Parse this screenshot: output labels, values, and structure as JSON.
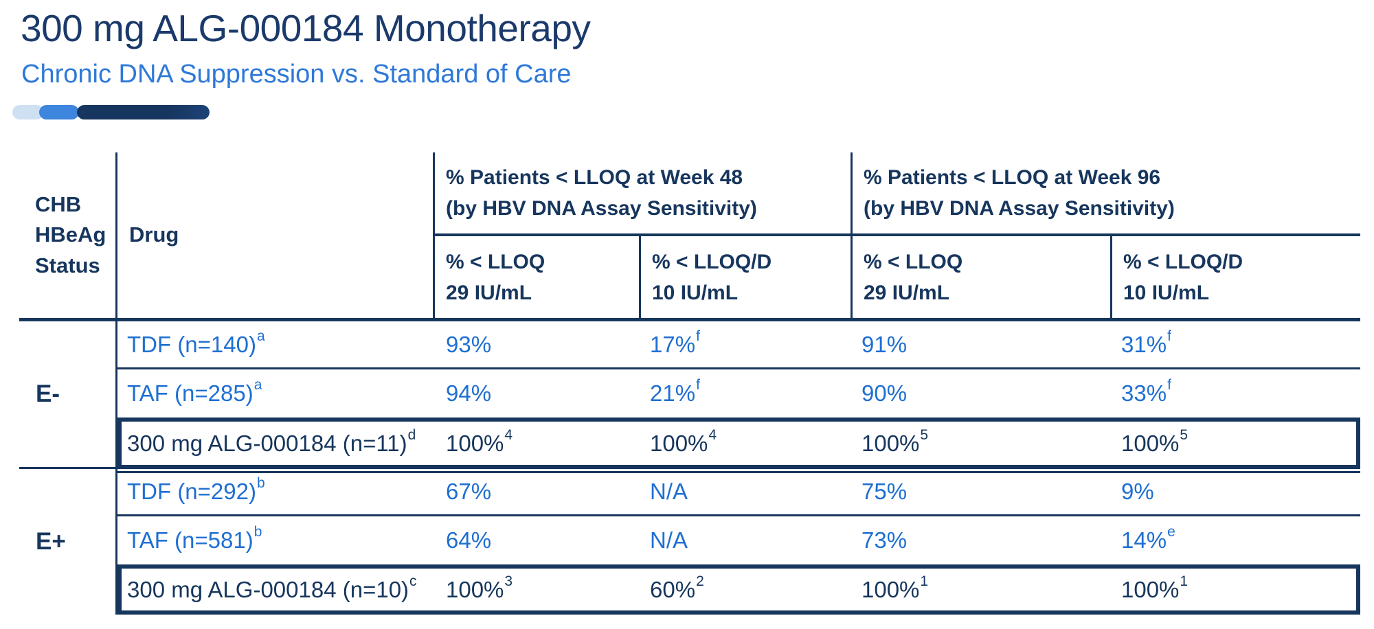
{
  "header": {
    "title": "300 mg ALG-000184 Monotherapy",
    "subtitle": "Chronic DNA Suppression vs. Standard of Care"
  },
  "colors": {
    "navy_text": "#17365d",
    "title_navy": "#1b3a6b",
    "blue_text": "#1e6fd2",
    "subtitle_blue": "#2e79d8",
    "deco_pill_light": "#cfe0f3",
    "deco_pill_mid": "#3d85dd",
    "deco_pill_dark": "#16355f"
  },
  "table": {
    "status_header_lines": [
      "CHB",
      "HBeAg",
      "Status"
    ],
    "drug_header": "Drug",
    "groups": [
      {
        "line1": "% Patients < LLOQ at Week 48",
        "line2": "(by HBV DNA Assay Sensitivity)"
      },
      {
        "line1": "% Patients < LLOQ at Week 96",
        "line2": "(by HBV DNA Assay Sensitivity)"
      }
    ],
    "subcolumns": [
      {
        "line1": "% < LLOQ",
        "line2": "29 IU/mL"
      },
      {
        "line1": "% < LLOQ/D",
        "line2": "10 IU/mL"
      },
      {
        "line1": "% < LLOQ",
        "line2": "29 IU/mL"
      },
      {
        "line1": "% < LLOQ/D",
        "line2": "10 IU/mL"
      }
    ],
    "sections": [
      {
        "label": "E-",
        "rows": [
          {
            "drug": "TDF (n=140)",
            "drug_sup": "a",
            "highlight": false,
            "values": [
              {
                "v": "93%",
                "sup": ""
              },
              {
                "v": "17%",
                "sup": "f"
              },
              {
                "v": "91%",
                "sup": ""
              },
              {
                "v": "31%",
                "sup": "f"
              }
            ]
          },
          {
            "drug": "TAF (n=285)",
            "drug_sup": "a",
            "highlight": false,
            "values": [
              {
                "v": "94%",
                "sup": ""
              },
              {
                "v": "21%",
                "sup": "f"
              },
              {
                "v": "90%",
                "sup": ""
              },
              {
                "v": "33%",
                "sup": "f"
              }
            ]
          },
          {
            "drug": "300 mg ALG-000184 (n=11)",
            "drug_sup": "d",
            "highlight": true,
            "values": [
              {
                "v": "100%",
                "sup": "4"
              },
              {
                "v": "100%",
                "sup": "4"
              },
              {
                "v": "100%",
                "sup": "5"
              },
              {
                "v": "100%",
                "sup": "5"
              }
            ]
          }
        ]
      },
      {
        "label": "E+",
        "rows": [
          {
            "drug": "TDF (n=292)",
            "drug_sup": "b",
            "highlight": false,
            "values": [
              {
                "v": "67%",
                "sup": ""
              },
              {
                "v": "N/A",
                "sup": ""
              },
              {
                "v": "75%",
                "sup": ""
              },
              {
                "v": "9%",
                "sup": ""
              }
            ]
          },
          {
            "drug": "TAF (n=581)",
            "drug_sup": "b",
            "highlight": false,
            "values": [
              {
                "v": "64%",
                "sup": ""
              },
              {
                "v": "N/A",
                "sup": ""
              },
              {
                "v": "73%",
                "sup": ""
              },
              {
                "v": "14%",
                "sup": "e"
              }
            ]
          },
          {
            "drug": "300 mg ALG-000184 (n=10)",
            "drug_sup": "c",
            "highlight": true,
            "values": [
              {
                "v": "100%",
                "sup": "3"
              },
              {
                "v": "60%",
                "sup": "2"
              },
              {
                "v": "100%",
                "sup": "1"
              },
              {
                "v": "100%",
                "sup": "1"
              }
            ]
          }
        ]
      }
    ]
  }
}
